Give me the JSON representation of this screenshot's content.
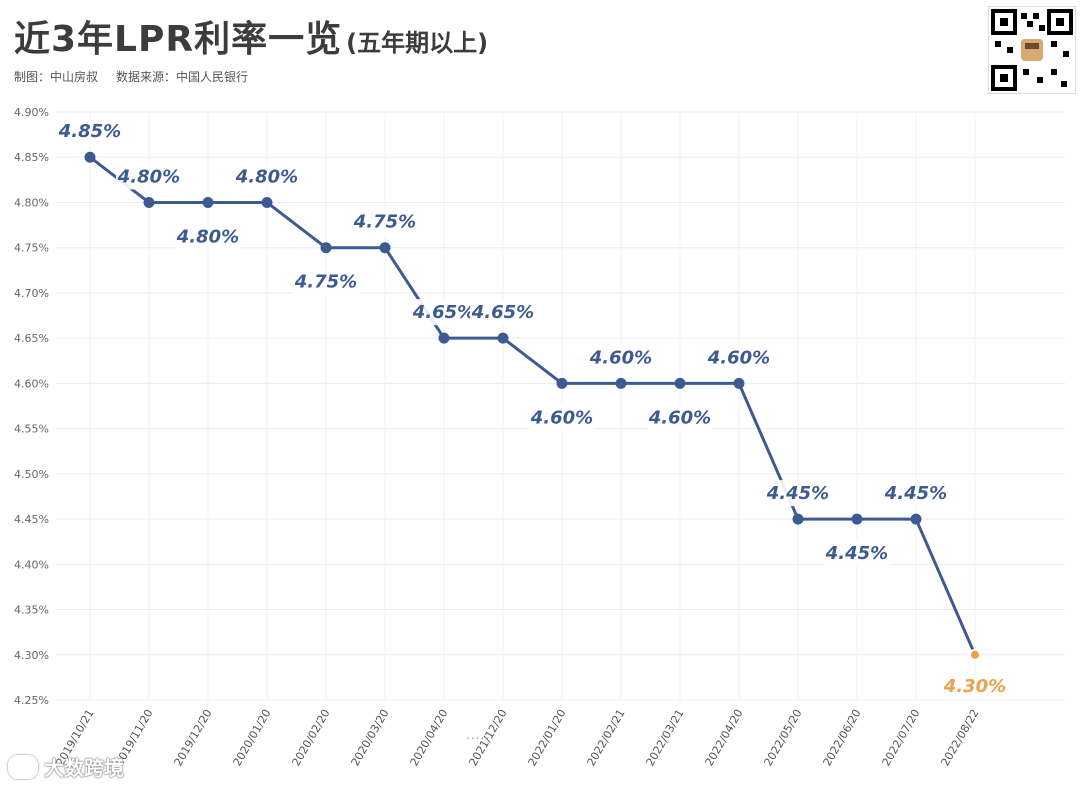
{
  "title": {
    "main": "近3年LPR利率一览",
    "sub": "(五年期以上)"
  },
  "credits": {
    "maker": "制图：中山房叔",
    "source": "数据来源：中国人民银行"
  },
  "qr_code": {
    "icon": "qr-code-icon"
  },
  "bottom_logo": {
    "text": "大数跨境",
    "icon": "weibo-logo-icon"
  },
  "axis_break": "......",
  "colors": {
    "line": "#3d5b92",
    "point": "#3d5b92",
    "highlight": "#f0a04b",
    "label": "#3d5b92"
  },
  "chart_data": {
    "type": "line",
    "title": "近3年LPR利率一览",
    "xlabel": "",
    "ylabel": "",
    "ylim": [
      4.25,
      4.9
    ],
    "yticks": [
      "4.25%",
      "4.30%",
      "4.35%",
      "4.40%",
      "4.45%",
      "4.50%",
      "4.55%",
      "4.60%",
      "4.65%",
      "4.70%",
      "4.75%",
      "4.80%",
      "4.85%",
      "4.90%"
    ],
    "categories": [
      "2019/10/21",
      "2019/11/20",
      "2019/12/20",
      "2020/01/20",
      "2020/02/20",
      "2020/03/20",
      "2020/04/20",
      "2021/12/20",
      "2022/01/20",
      "2022/02/21",
      "2022/03/21",
      "2022/04/20",
      "2022/05/20",
      "2022/06/20",
      "2022/07/20",
      "2022/08/22"
    ],
    "values": [
      4.85,
      4.8,
      4.8,
      4.8,
      4.75,
      4.75,
      4.65,
      4.65,
      4.6,
      4.6,
      4.6,
      4.6,
      4.45,
      4.45,
      4.45,
      4.3
    ],
    "data_labels": [
      "4.85%",
      "4.80%",
      "4.80%",
      "4.80%",
      "4.75%",
      "4.75%",
      "4.65%",
      "4.65%",
      "4.60%",
      "4.60%",
      "4.60%",
      "4.60%",
      "4.45%",
      "4.45%",
      "4.45%",
      "4.30%"
    ],
    "highlight_last": true,
    "grid": true
  }
}
